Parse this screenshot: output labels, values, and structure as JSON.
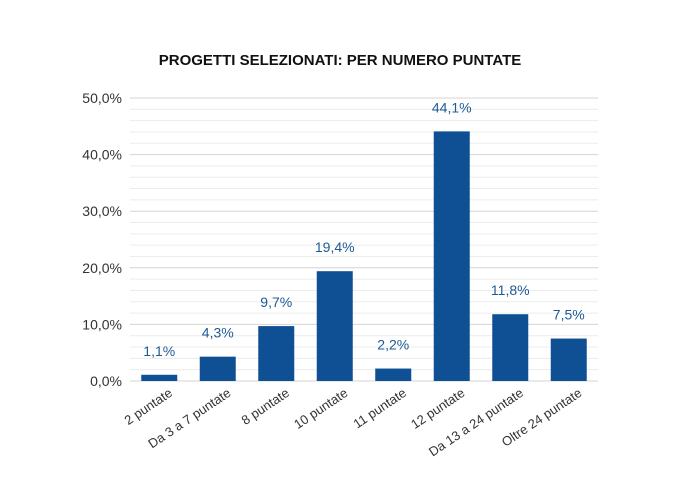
{
  "chart_data": {
    "type": "bar",
    "title": "PROGETTI SELEZIONATI: PER NUMERO PUNTATE",
    "categories": [
      "2 puntate",
      "Da 3 a 7 puntate",
      "8 puntate",
      "10 puntate",
      "11 puntate",
      "12 puntate",
      "Da 13 a 24 puntate",
      "Oltre 24 puntate"
    ],
    "values": [
      1.1,
      4.3,
      9.7,
      19.4,
      2.2,
      44.1,
      11.8,
      7.5
    ],
    "value_labels": [
      "1,1%",
      "4,3%",
      "9,7%",
      "19,4%",
      "2,2%",
      "44,1%",
      "11,8%",
      "7,5%"
    ],
    "y_ticks": [
      0,
      10,
      20,
      30,
      40,
      50
    ],
    "y_tick_labels": [
      "0,0%",
      "10,0%",
      "20,0%",
      "30,0%",
      "40,0%",
      "50,0%"
    ],
    "ylim": [
      0,
      50
    ],
    "grid": true,
    "legend": "none",
    "bar_color": "#0f4f93",
    "label_color": "#1f5a96",
    "grid_color": "#d4d4d4"
  }
}
